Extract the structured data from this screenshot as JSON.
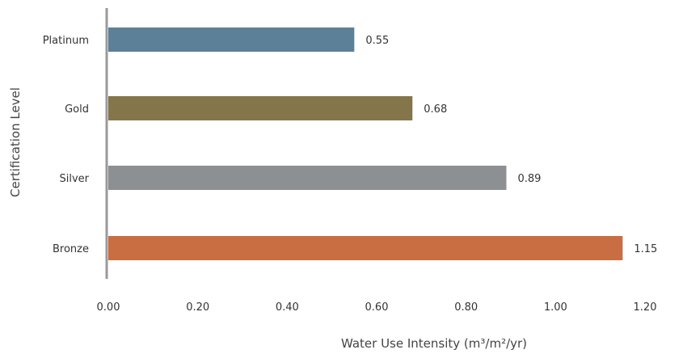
{
  "chart_data": {
    "type": "bar",
    "orientation": "horizontal",
    "categories": [
      "Platinum",
      "Gold",
      "Silver",
      "Bronze"
    ],
    "values": [
      0.55,
      0.68,
      0.89,
      1.15
    ],
    "value_labels": [
      "0.55",
      "0.68",
      "0.89",
      "1.15"
    ],
    "colors": [
      "#5d8099",
      "#84754a",
      "#8d9093",
      "#c96e43"
    ],
    "title": "",
    "xlabel": "Water Use Intensity  (m³/m²/yr)",
    "ylabel": "Certification Level",
    "xlim": [
      0,
      1.2
    ],
    "x_ticks": [
      "0.00",
      "0.20",
      "0.40",
      "0.60",
      "0.80",
      "1.00",
      "1.20"
    ],
    "grid": false,
    "legend": "none",
    "axis_color": "#999999"
  }
}
